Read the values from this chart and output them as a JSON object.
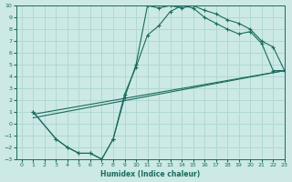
{
  "xlabel": "Humidex (Indice chaleur)",
  "xlim": [
    -0.5,
    23
  ],
  "ylim": [
    -3,
    10
  ],
  "xticks": [
    0,
    1,
    2,
    3,
    4,
    5,
    6,
    7,
    8,
    9,
    10,
    11,
    12,
    13,
    14,
    15,
    16,
    17,
    18,
    19,
    20,
    21,
    22,
    23
  ],
  "yticks": [
    -3,
    -2,
    -1,
    0,
    1,
    2,
    3,
    4,
    5,
    6,
    7,
    8,
    9,
    10
  ],
  "bg_color": "#cce9e5",
  "grid_color": "#b0d8d4",
  "line_color": "#1a6b5e",
  "curve1_x": [
    1,
    3,
    4,
    5,
    6,
    7,
    8,
    9,
    10,
    11,
    12,
    13,
    14,
    15,
    16,
    17,
    18,
    19,
    20,
    21,
    22,
    23
  ],
  "curve1_y": [
    1,
    -1.3,
    -2,
    -2.5,
    -2.5,
    -3,
    -1.3,
    2.2,
    5.0,
    10,
    9.8,
    10,
    9.8,
    10,
    9.6,
    9.3,
    8.8,
    8.5,
    8.0,
    7.0,
    6.5,
    4.5
  ],
  "curve2_x": [
    1,
    3,
    4,
    5,
    6,
    7,
    8,
    9,
    10,
    11,
    12,
    13,
    14,
    15,
    16,
    17,
    18,
    19,
    20,
    21,
    22,
    23
  ],
  "curve2_y": [
    1,
    -1.3,
    -2,
    -2.5,
    -2.5,
    -3,
    -1.3,
    2.5,
    4.8,
    7.5,
    8.3,
    9.5,
    10,
    9.8,
    9.0,
    8.5,
    8.0,
    7.6,
    7.8,
    6.8,
    4.5,
    4.5
  ],
  "line1_x": [
    1,
    23
  ],
  "line1_y": [
    0.5,
    4.5
  ],
  "line2_x": [
    1,
    23
  ],
  "line2_y": [
    0.8,
    4.5
  ]
}
